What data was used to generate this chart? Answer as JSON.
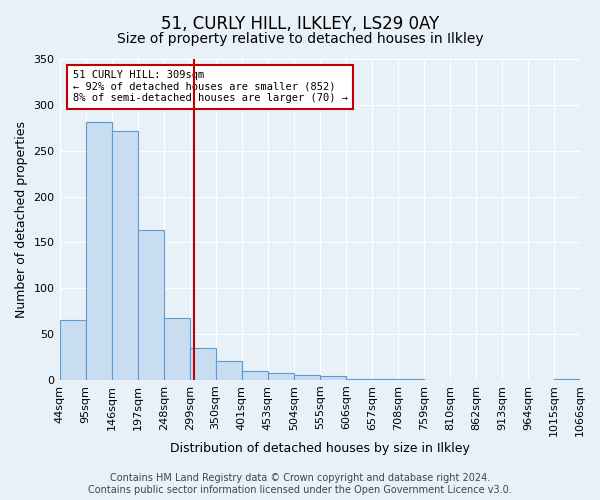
{
  "title": "51, CURLY HILL, ILKLEY, LS29 0AY",
  "subtitle": "Size of property relative to detached houses in Ilkley",
  "xlabel": "Distribution of detached houses by size in Ilkley",
  "ylabel": "Number of detached properties",
  "footer_lines": [
    "Contains HM Land Registry data © Crown copyright and database right 2024.",
    "Contains public sector information licensed under the Open Government Licence v3.0."
  ],
  "bin_labels": [
    "44sqm",
    "95sqm",
    "146sqm",
    "197sqm",
    "248sqm",
    "299sqm",
    "350sqm",
    "401sqm",
    "453sqm",
    "504sqm",
    "555sqm",
    "606sqm",
    "657sqm",
    "708sqm",
    "759sqm",
    "810sqm",
    "862sqm",
    "913sqm",
    "964sqm",
    "1015sqm",
    "1066sqm"
  ],
  "bar_values": [
    65,
    281,
    272,
    163,
    68,
    35,
    21,
    10,
    7,
    5,
    4,
    1,
    1,
    1,
    0,
    0,
    0,
    0,
    0,
    1
  ],
  "bar_color": "#c9ddf0",
  "bar_edge_color": "#5b9bd5",
  "vline_x": 5.18,
  "vline_color": "#c00000",
  "annotation_text": "51 CURLY HILL: 309sqm\n← 92% of detached houses are smaller (852)\n8% of semi-detached houses are larger (70) →",
  "annotation_box_color": "#ffffff",
  "annotation_box_edge_color": "#c00000",
  "ylim": [
    0,
    350
  ],
  "yticks": [
    0,
    50,
    100,
    150,
    200,
    250,
    300,
    350
  ],
  "background_color": "#e8f0f8",
  "plot_bg_color": "#e8f0f8",
  "grid_color": "#ffffff",
  "title_fontsize": 12,
  "subtitle_fontsize": 10,
  "axis_label_fontsize": 9,
  "tick_fontsize": 8,
  "footer_fontsize": 7
}
